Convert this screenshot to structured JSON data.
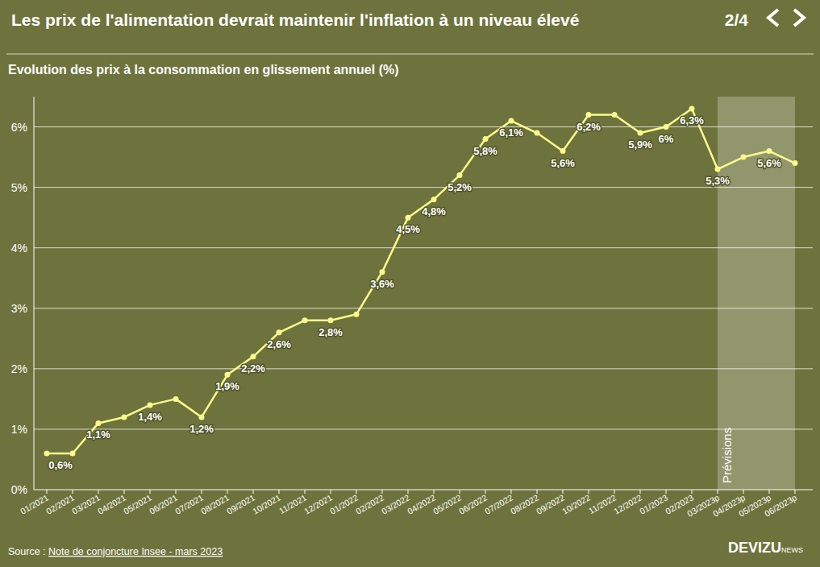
{
  "chart_data": {
    "type": "line",
    "title": "Les prix de l'alimentation devrait maintenir l'inflation à un niveau élevé",
    "page": "2/4",
    "subtitle": "Evolution des prix à la consommation en glissement annuel (%)",
    "source": {
      "label": "Source :",
      "text": "Note de conjoncture Insee - mars 2023"
    },
    "brand": {
      "name": "DEVIZU",
      "suffix": "NEWS"
    },
    "categories": [
      "01/2021",
      "02/2021",
      "03/2021",
      "04/2021",
      "05/2021",
      "06/2021",
      "07/2021",
      "08/2021",
      "09/2021",
      "10/2021",
      "11/2021",
      "12/2021",
      "01/2022",
      "02/2022",
      "03/2022",
      "04/2022",
      "05/2022",
      "06/2022",
      "07/2022",
      "08/2022",
      "09/2022",
      "10/2022",
      "11/2022",
      "12/2022",
      "01/2023",
      "02/2023",
      "03/2023p",
      "04/2023p",
      "05/2023p",
      "06/2023p"
    ],
    "values": [
      0.6,
      0.6,
      1.1,
      1.2,
      1.4,
      1.5,
      1.2,
      1.9,
      2.2,
      2.6,
      2.8,
      2.8,
      2.9,
      3.6,
      4.5,
      4.8,
      5.2,
      5.8,
      6.1,
      5.9,
      5.6,
      6.2,
      6.2,
      5.9,
      6.0,
      6.3,
      5.3,
      5.5,
      5.6,
      5.4
    ],
    "value_labels": [
      "0,6%",
      null,
      "1,1%",
      null,
      "1,4%",
      null,
      "1,2%",
      "1,9%",
      "2,2%",
      "2,6%",
      null,
      "2,8%",
      null,
      "3,6%",
      "4,5%",
      "4,8%",
      "5,2%",
      "5,8%",
      "6,1%",
      null,
      "5,6%",
      "6,2%",
      null,
      "5,9%",
      "6%",
      "6,3%",
      "5,3%",
      null,
      "5,6%",
      null
    ],
    "data_labels": true,
    "color": "#fbfb8c",
    "marker": "circle",
    "ylim": [
      0,
      6.5
    ],
    "yticks": [
      {
        "value": 0,
        "label": "0%"
      },
      {
        "value": 1,
        "label": "1%"
      },
      {
        "value": 2,
        "label": "2%"
      },
      {
        "value": 3,
        "label": "3%"
      },
      {
        "value": 4,
        "label": "4%"
      },
      {
        "value": 5,
        "label": "5%"
      },
      {
        "value": 6,
        "label": "6%"
      }
    ],
    "grid": true,
    "annotations": [
      {
        "text": "Prévisions",
        "x_from": "03/2023p",
        "x_to": "06/2023p"
      }
    ]
  }
}
